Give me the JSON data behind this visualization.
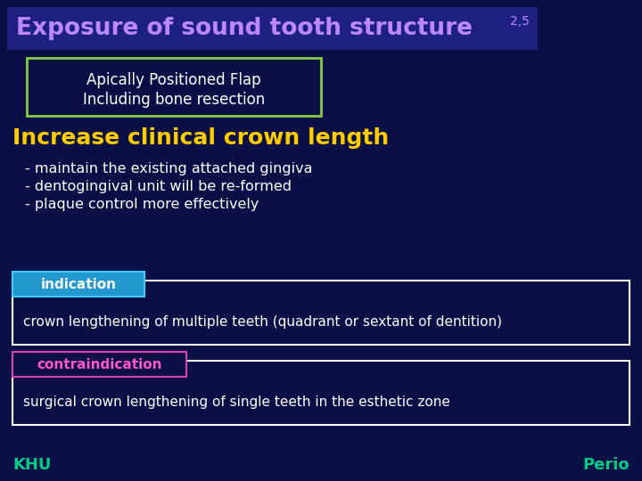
{
  "bg_color": "#0a1045",
  "title": "Exposure of sound tooth structure ",
  "title_superscript": "2,5",
  "title_color": "#bb88ff",
  "title_bg_color": "#1e2080",
  "title_fontsize": 19,
  "box1_text_line1": "Apically Positioned Flap",
  "box1_text_line2": "Including bone resection",
  "box1_border_color": "#88cc44",
  "box1_text_color": "#ffffff",
  "section_title": "Increase clinical crown length",
  "section_title_color": "#ffcc00",
  "section_title_fontsize": 18,
  "bullets": [
    "- maintain the existing attached gingiva",
    "- dentogingival unit will be re-formed",
    "- plaque control more effectively"
  ],
  "bullet_color": "#ffffff",
  "bullet_fontsize": 11.5,
  "indication_label": "indication",
  "indication_label_bg": "#2299cc",
  "indication_label_border": "#44ccff",
  "indication_label_color": "#ffffff",
  "indication_text": "crown lengthening of multiple teeth (quadrant or sextant of dentition)",
  "indication_text_color": "#ffffff",
  "indication_box_border": "#ffffff",
  "contraindication_label": "contraindication",
  "contraindication_label_bg": "#0a1045",
  "contraindication_label_border": "#dd44aa",
  "contraindication_label_color": "#ff55cc",
  "contraindication_text": "surgical crown lengthening of single teeth in the esthetic zone",
  "contraindication_text_color": "#ffffff",
  "contraindication_box_border": "#ffffff",
  "footer_left": "KHU",
  "footer_right": "Perio",
  "footer_color": "#00cc88",
  "footer_fontsize": 13
}
